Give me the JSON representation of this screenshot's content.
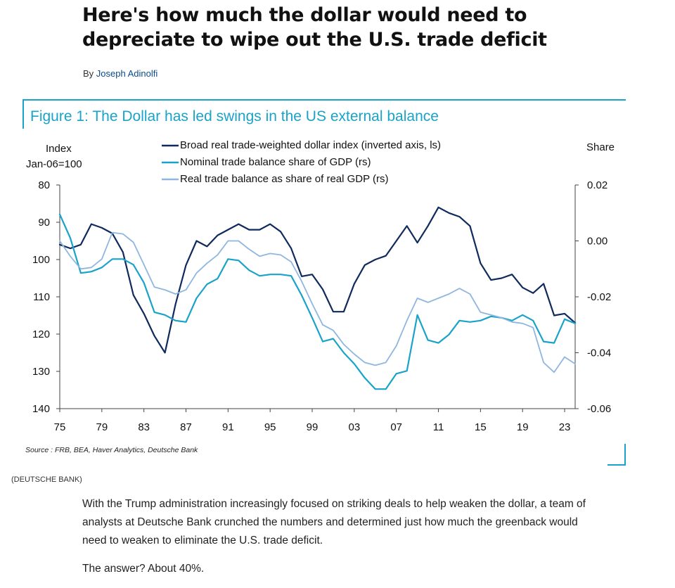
{
  "headline": "Here's how much the dollar would need to depreciate to wipe out the U.S. trade deficit",
  "byline": {
    "prefix": "By",
    "author": "Joseph Adinolfi"
  },
  "figure": {
    "title": "Figure 1: The Dollar has led swings in the US external balance",
    "left_axis_label_1": "Index",
    "left_axis_label_2": "Jan-06=100",
    "right_axis_label": "Share",
    "source": "Source : FRB, BEA, Haver Analytics, Deutsche Bank"
  },
  "credit": "(DEUTSCHE BANK)",
  "body": {
    "paragraph_1": "With the Trump administration increasingly focused on striking deals to help weaken the dollar, a team of analysts at Deutsche Bank crunched the numbers and determined just how much the greenback would need to weaken to eliminate the U.S. trade deficit.",
    "paragraph_2": "The answer? About 40%."
  },
  "chart_data": {
    "type": "line",
    "xlim": [
      1975,
      2024
    ],
    "x_ticks": [
      "75",
      "79",
      "83",
      "87",
      "91",
      "95",
      "99",
      "03",
      "07",
      "11",
      "15",
      "19",
      "23"
    ],
    "left_axis": {
      "label": "Index Jan-06=100",
      "ylim": [
        80,
        140
      ],
      "inverted": true,
      "ticks": [
        "80",
        "90",
        "100",
        "110",
        "120",
        "130",
        "140"
      ]
    },
    "right_axis": {
      "label": "Share",
      "ylim": [
        -0.06,
        0.02
      ],
      "ticks": [
        "0.02",
        "0.00",
        "-0.02",
        "-0.04",
        "-0.06"
      ]
    },
    "colors": {
      "dollar": "#0f2a5c",
      "nominal": "#1aa3c9",
      "real": "#8fb6df"
    },
    "series": [
      {
        "name": "Broad real trade-weighted dollar index (inverted axis, ls)",
        "axis": "left",
        "x": [
          1975,
          1976,
          1977,
          1978,
          1979,
          1980,
          1981,
          1982,
          1983,
          1984,
          1985,
          1986,
          1987,
          1988,
          1989,
          1990,
          1991,
          1992,
          1993,
          1994,
          1995,
          1996,
          1997,
          1998,
          1999,
          2000,
          2001,
          2002,
          2003,
          2004,
          2005,
          2006,
          2007,
          2008,
          2009,
          2010,
          2011,
          2012,
          2013,
          2014,
          2015,
          2016,
          2017,
          2018,
          2019,
          2020,
          2021,
          2022,
          2023,
          2024
        ],
        "y": [
          96,
          97,
          96,
          90.5,
          91.5,
          93,
          98,
          109.5,
          114.5,
          120.5,
          125,
          112,
          101.5,
          95,
          96.5,
          93.5,
          92,
          90.5,
          92,
          92,
          90.5,
          92.5,
          97,
          104.5,
          104,
          108,
          114,
          114,
          106.5,
          101.5,
          100,
          99,
          95,
          91,
          95.5,
          91,
          86,
          87.5,
          88.5,
          91,
          101,
          105.5,
          105,
          104,
          107.5,
          109,
          106.5,
          115,
          114.5,
          117
        ]
      },
      {
        "name": "Nominal trade balance share of GDP (rs)",
        "axis": "right",
        "x": [
          1975,
          1976,
          1977,
          1978,
          1979,
          1980,
          1981,
          1982,
          1983,
          1984,
          1985,
          1986,
          1987,
          1988,
          1989,
          1990,
          1991,
          1992,
          1993,
          1994,
          1995,
          1996,
          1997,
          1998,
          1999,
          2000,
          2001,
          2002,
          2003,
          2004,
          2005,
          2006,
          2007,
          2008,
          2009,
          2010,
          2011,
          2012,
          2013,
          2014,
          2015,
          2016,
          2017,
          2018,
          2019,
          2020,
          2021,
          2022,
          2023,
          2024
        ],
        "y": [
          0.0095,
          0.001,
          -0.0115,
          -0.011,
          -0.0095,
          -0.0065,
          -0.0065,
          -0.0085,
          -0.015,
          -0.0255,
          -0.0265,
          -0.0285,
          -0.029,
          -0.0205,
          -0.0155,
          -0.0135,
          -0.0065,
          -0.007,
          -0.0105,
          -0.0125,
          -0.012,
          -0.012,
          -0.0125,
          -0.0195,
          -0.0275,
          -0.036,
          -0.035,
          -0.04,
          -0.044,
          -0.049,
          -0.053,
          -0.053,
          -0.0475,
          -0.0465,
          -0.0265,
          -0.0355,
          -0.0365,
          -0.0335,
          -0.0285,
          -0.029,
          -0.0285,
          -0.027,
          -0.0275,
          -0.0285,
          -0.0265,
          -0.0285,
          -0.036,
          -0.0365,
          -0.028,
          -0.0295
        ]
      },
      {
        "name": "Real trade balance as share of real GDP (rs)",
        "axis": "right",
        "x": [
          1975,
          1976,
          1977,
          1978,
          1979,
          1980,
          1981,
          1982,
          1983,
          1984,
          1985,
          1986,
          1987,
          1988,
          1989,
          1990,
          1991,
          1992,
          1993,
          1994,
          1995,
          1996,
          1997,
          1998,
          1999,
          2000,
          2001,
          2002,
          2003,
          2004,
          2005,
          2006,
          2007,
          2008,
          2009,
          2010,
          2011,
          2012,
          2013,
          2014,
          2015,
          2016,
          2017,
          2018,
          2019,
          2020,
          2021,
          2022,
          2023,
          2024
        ],
        "y": [
          0.0,
          -0.0055,
          -0.01,
          -0.0095,
          -0.0065,
          0.003,
          0.0025,
          -0.0005,
          -0.0085,
          -0.0165,
          -0.0175,
          -0.019,
          -0.0175,
          -0.0115,
          -0.008,
          -0.005,
          0.0,
          0.0,
          -0.003,
          -0.0055,
          -0.0045,
          -0.005,
          -0.0075,
          -0.0145,
          -0.0225,
          -0.03,
          -0.032,
          -0.037,
          -0.0405,
          -0.0435,
          -0.0445,
          -0.0435,
          -0.0375,
          -0.0285,
          -0.0205,
          -0.022,
          -0.0205,
          -0.019,
          -0.017,
          -0.019,
          -0.0255,
          -0.0265,
          -0.0275,
          -0.029,
          -0.0295,
          -0.031,
          -0.0435,
          -0.047,
          -0.0415,
          -0.044
        ]
      }
    ]
  }
}
